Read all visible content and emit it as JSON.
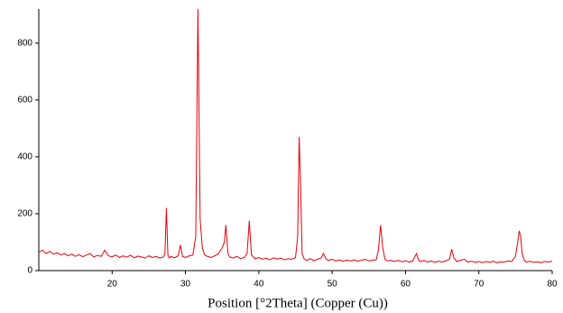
{
  "chart_data": {
    "type": "line",
    "xlabel": "Position [°2Theta] (Copper (Cu))",
    "color": "#e8000b",
    "xlim": [
      10,
      80
    ],
    "ylim": [
      0,
      920
    ],
    "xticks": [
      20,
      30,
      40,
      50,
      60,
      70,
      80
    ],
    "yticks": [
      0,
      200,
      400,
      600,
      800
    ],
    "x": [
      10,
      10.5,
      11,
      11.5,
      12,
      12.5,
      13,
      13.5,
      14,
      14.5,
      15,
      15.5,
      16,
      16.5,
      17,
      17.5,
      18,
      18.5,
      19,
      19.5,
      20,
      20.5,
      21,
      21.5,
      22,
      22.5,
      23,
      23.5,
      24,
      24.5,
      25,
      25.5,
      26,
      26.5,
      27,
      27.2,
      27.4,
      27.6,
      27.8,
      28,
      28.5,
      29,
      29.3,
      29.6,
      30,
      30.5,
      31,
      31.4,
      31.7,
      32.0,
      32.3,
      32.6,
      33,
      33.5,
      34,
      34.5,
      35,
      35.3,
      35.5,
      35.8,
      36,
      36.5,
      37,
      37.5,
      38,
      38.4,
      38.7,
      39,
      39.5,
      40,
      40.5,
      41,
      41.5,
      42,
      42.5,
      43,
      43.5,
      44,
      44.5,
      45,
      45.3,
      45.5,
      45.7,
      45.9,
      46.2,
      46.5,
      47,
      47.5,
      48,
      48.5,
      48.8,
      49.2,
      49.5,
      50,
      50.5,
      51,
      51.5,
      52,
      52.5,
      53,
      53.5,
      54,
      54.5,
      55,
      55.5,
      56,
      56.3,
      56.6,
      56.9,
      57.2,
      57.5,
      58,
      58.5,
      59,
      59.5,
      60,
      60.5,
      61,
      61.5,
      61.8,
      62,
      62.5,
      63,
      63.5,
      64,
      64.5,
      65,
      65.5,
      66,
      66.3,
      66.6,
      67,
      67.5,
      68,
      68.5,
      69,
      69.5,
      70,
      70.5,
      71,
      71.5,
      72,
      72.5,
      73,
      73.5,
      74,
      74.5,
      75,
      75.3,
      75.5,
      75.7,
      75.9,
      76.2,
      76.5,
      77,
      77.5,
      78,
      78.5,
      79,
      79.5,
      80
    ],
    "values": [
      65,
      72,
      60,
      68,
      58,
      63,
      55,
      60,
      52,
      58,
      50,
      56,
      49,
      55,
      60,
      48,
      54,
      50,
      72,
      52,
      48,
      55,
      46,
      52,
      47,
      54,
      45,
      51,
      48,
      44,
      52,
      46,
      50,
      44,
      48,
      60,
      220,
      55,
      44,
      50,
      45,
      52,
      90,
      50,
      46,
      52,
      55,
      120,
      920,
      180,
      80,
      55,
      50,
      46,
      52,
      60,
      80,
      100,
      160,
      60,
      48,
      44,
      50,
      42,
      46,
      60,
      175,
      55,
      42,
      46,
      40,
      44,
      38,
      45,
      40,
      44,
      38,
      42,
      40,
      45,
      120,
      470,
      300,
      60,
      40,
      36,
      42,
      35,
      40,
      44,
      60,
      40,
      36,
      40,
      34,
      38,
      33,
      37,
      34,
      38,
      33,
      36,
      40,
      34,
      37,
      38,
      70,
      160,
      80,
      40,
      34,
      36,
      32,
      36,
      31,
      35,
      30,
      34,
      60,
      36,
      32,
      36,
      30,
      34,
      29,
      33,
      30,
      34,
      40,
      75,
      45,
      32,
      36,
      40,
      30,
      33,
      29,
      32,
      28,
      32,
      29,
      33,
      28,
      31,
      30,
      34,
      32,
      50,
      100,
      140,
      120,
      60,
      36,
      30,
      33,
      29,
      31,
      28,
      32,
      30,
      33
    ]
  }
}
